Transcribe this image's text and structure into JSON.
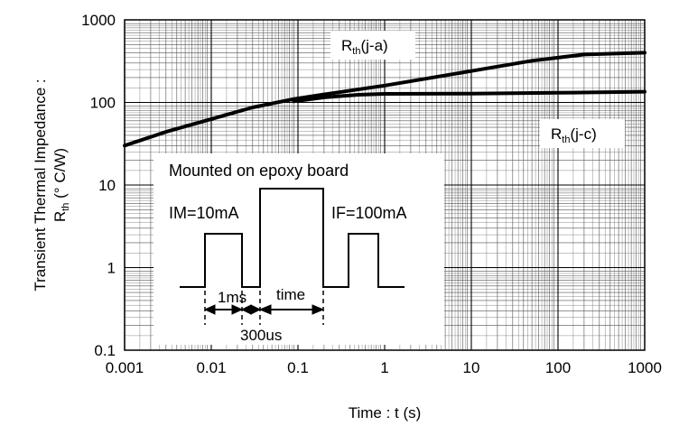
{
  "chart_data": {
    "type": "line",
    "xscale": "log",
    "yscale": "log",
    "xlim": [
      0.001,
      1000
    ],
    "ylim": [
      0.1,
      1000
    ],
    "grid": true,
    "xlabel": "Time : t (s)",
    "ylabel_line1": "Transient Thermal Impedance :",
    "ylabel_line2_base": "R",
    "ylabel_line2_sub": "th",
    "ylabel_line2_rest": " (° C/W)",
    "x_ticks": [
      {
        "value": 0.001,
        "label": "0.001"
      },
      {
        "value": 0.01,
        "label": "0.01"
      },
      {
        "value": 0.1,
        "label": "0.1"
      },
      {
        "value": 1,
        "label": "1"
      },
      {
        "value": 10,
        "label": "10"
      },
      {
        "value": 100,
        "label": "100"
      },
      {
        "value": 1000,
        "label": "1000"
      }
    ],
    "y_ticks": [
      {
        "value": 0.1,
        "label": "0.1"
      },
      {
        "value": 1,
        "label": "1"
      },
      {
        "value": 10,
        "label": "10"
      },
      {
        "value": 100,
        "label": "100"
      },
      {
        "value": 1000,
        "label": "1000"
      }
    ],
    "series": [
      {
        "name_base": "R",
        "name_sub": "th",
        "name_rest": "(j-a)",
        "x": [
          0.001,
          0.003,
          0.01,
          0.03,
          0.09,
          0.2,
          1,
          10,
          50,
          200,
          1000
        ],
        "y": [
          30,
          44,
          63,
          87,
          110,
          125,
          160,
          240,
          320,
          380,
          400
        ]
      },
      {
        "name_base": "R",
        "name_sub": "th",
        "name_rest": "(j-c)",
        "x": [
          0.09,
          0.2,
          0.5,
          1,
          10,
          100,
          1000
        ],
        "y": [
          103,
          115,
          124,
          127,
          128,
          131,
          135
        ]
      }
    ],
    "inset": {
      "title": "Mounted on epoxy board",
      "im_label": "IM=10mA",
      "if_label": "IF=100mA",
      "one_ms_label": "1ms",
      "time_label": "time",
      "us_label": "300us"
    }
  }
}
